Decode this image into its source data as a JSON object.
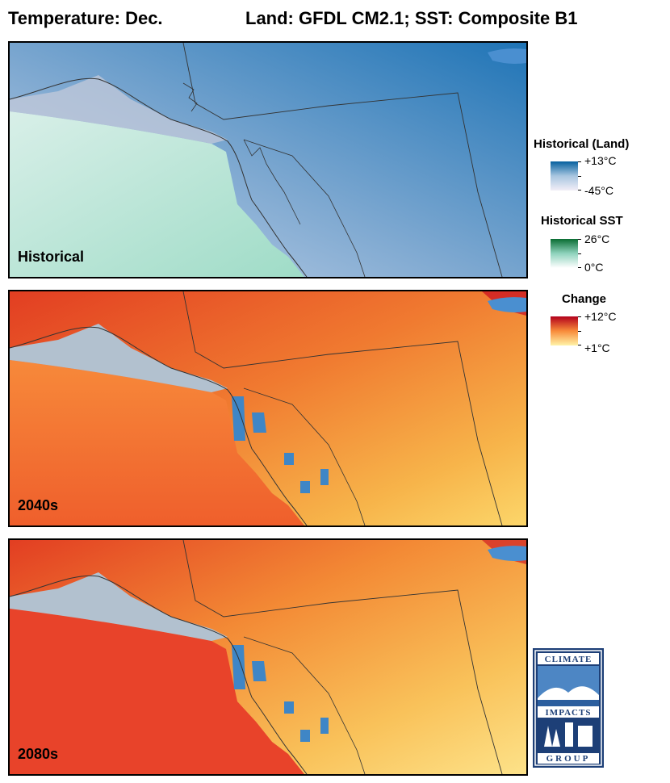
{
  "header": {
    "variable": "Temperature: Dec.",
    "model": "Land: GFDL CM2.1; SST: Composite B1"
  },
  "panels": [
    {
      "label": "Historical"
    },
    {
      "label": "2040s"
    },
    {
      "label": "2080s"
    }
  ],
  "legend": {
    "historical_land": {
      "title": "Historical (Land)",
      "max": "+13°C",
      "min": "-45°C",
      "colors": [
        "#f2eef7",
        "#a8c6e0",
        "#05609f"
      ]
    },
    "historical_sst": {
      "title": "Historical SST",
      "max": "26°C",
      "min": "0°C",
      "colors": [
        "#ffffff",
        "#8fd3bd",
        "#0a6d33"
      ]
    },
    "change": {
      "title": "Change",
      "max": "+12°C",
      "min": "+1°C",
      "colors": [
        "#fff3a8",
        "#f88b3a",
        "#b3001b"
      ]
    }
  },
  "logo": {
    "top": "CLIMATE",
    "middle": "IMPACTS",
    "bottom": "GROUP"
  }
}
